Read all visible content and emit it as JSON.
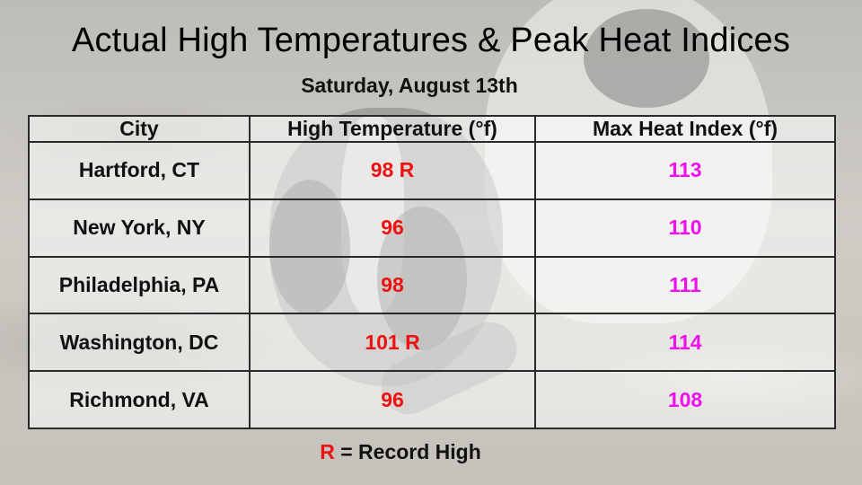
{
  "title": "Actual High Temperatures & Peak Heat Indices",
  "subtitle": "Saturday, August 13th",
  "table": {
    "headers": [
      "City",
      "High Temperature (°f)",
      "Max Heat Index (°f)"
    ],
    "rows": [
      {
        "city": "Hartford, CT",
        "high": "98 R",
        "heat_index": "113"
      },
      {
        "city": "New York, NY",
        "high": "96",
        "heat_index": "110"
      },
      {
        "city": "Philadelphia, PA",
        "high": "98",
        "heat_index": "111"
      },
      {
        "city": "Washington, DC",
        "high": "101 R",
        "heat_index": "114"
      },
      {
        "city": "Richmond, VA",
        "high": "96",
        "heat_index": "108"
      }
    ]
  },
  "legend": {
    "marker": "R",
    "text": " = Record High"
  },
  "colors": {
    "temperature": "#ee1111",
    "heat_index": "#ee11ee",
    "record_marker": "#ee1111"
  }
}
